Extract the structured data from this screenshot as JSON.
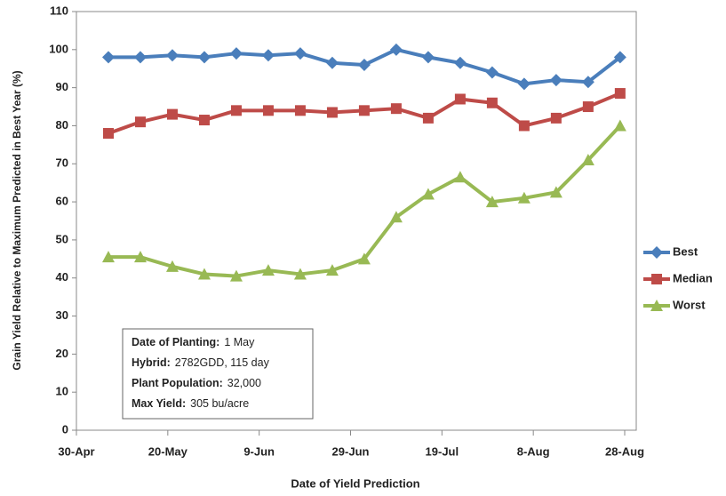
{
  "chart_data": {
    "type": "line",
    "x_label": "Date of Yield Prediction",
    "y_label": "Grain Yield Relative to Maximum Predicted in Best Year (%)",
    "x": [
      "7-May",
      "14-May",
      "21-May",
      "28-May",
      "4-Jun",
      "11-Jun",
      "18-Jun",
      "25-Jun",
      "2-Jul",
      "9-Jul",
      "16-Jul",
      "23-Jul",
      "30-Jul",
      "6-Aug",
      "13-Aug",
      "20-Aug",
      "27-Aug"
    ],
    "series": [
      {
        "name": "Best",
        "color": "#4a7ebb",
        "marker": "diamond",
        "values": [
          98,
          98,
          98.5,
          98,
          99,
          98.5,
          99,
          96.5,
          96,
          100,
          98,
          96.5,
          94,
          91,
          92,
          91.5,
          98
        ]
      },
      {
        "name": "Median",
        "color": "#be4b48",
        "marker": "square",
        "values": [
          78,
          81,
          83,
          81.5,
          84,
          84,
          84,
          83.5,
          84,
          84.5,
          82,
          87,
          86,
          80,
          82,
          85,
          88.5
        ]
      },
      {
        "name": "Worst",
        "color": "#98b954",
        "marker": "triangle",
        "values": [
          45.5,
          45.5,
          43,
          41,
          40.5,
          42,
          41,
          42,
          45,
          56,
          62,
          66.5,
          60,
          61,
          62.5,
          71,
          80
        ]
      }
    ],
    "xlim": [
      "30-Apr",
      "28-Aug"
    ],
    "xticks": [
      "30-Apr",
      "20-May",
      "9-Jun",
      "29-Jun",
      "19-Jul",
      "8-Aug",
      "28-Aug"
    ],
    "ylim": [
      0,
      110
    ],
    "yticks": [
      0,
      10,
      20,
      30,
      40,
      50,
      60,
      70,
      80,
      90,
      100,
      110
    ],
    "legend": "right",
    "annotations": [
      {
        "label": "Date of Planting:",
        "value": "1 May"
      },
      {
        "label": "Hybrid:",
        "value": "2782GDD, 115 day"
      },
      {
        "label": "Plant Population:",
        "value": "32,000"
      },
      {
        "label": "Max Yield:",
        "value": "305 bu/acre"
      }
    ]
  }
}
